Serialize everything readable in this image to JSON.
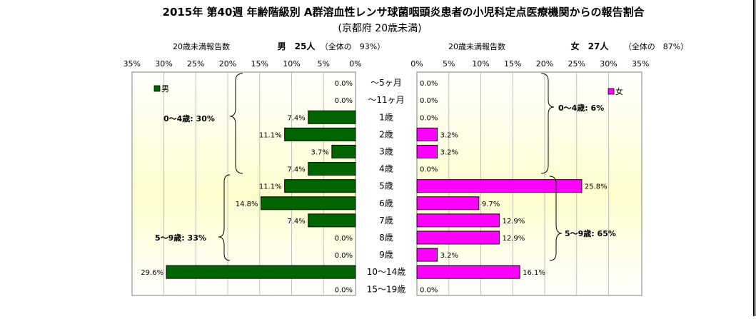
{
  "title": "2015年 第40週 年齢階級別 A群溶血性レンサ球菌咽頭炎患者の小児科定点医療機関からの報告割合",
  "subtitle": "(京都府 20歳未満)",
  "left_panel": {
    "report_label": "20歳未満報告数",
    "gender_title": "男　25人",
    "overall_note": "（全体の　93%）",
    "legend": "男",
    "group_labels": [
      "0～4歳: 30%",
      "5～9歳: 33%"
    ]
  },
  "right_panel": {
    "report_label": "20歳未満報告数",
    "gender_title": "女　27人",
    "overall_note": "（全体の　87%）",
    "legend": "女",
    "group_labels": [
      "0～4歳: 6%",
      "5～9歳: 65%"
    ]
  },
  "chart_data": {
    "type": "bar",
    "orientation": "horizontal",
    "categories": [
      "～5ヶ月",
      "～11ヶ月",
      "1歳",
      "2歳",
      "3歳",
      "4歳",
      "5歳",
      "6歳",
      "7歳",
      "8歳",
      "9歳",
      "10～14歳",
      "15～19歳"
    ],
    "series": [
      {
        "name": "男",
        "values": [
          0.0,
          0.0,
          7.4,
          11.1,
          3.7,
          7.4,
          11.1,
          14.8,
          7.4,
          0.0,
          0.0,
          29.6,
          0.0
        ],
        "labels": [
          "0.0%",
          "0.0%",
          "7.4%",
          "11.1%",
          "3.7%",
          "7.4%",
          "11.1%",
          "14.8%",
          "7.4%",
          "0.0%",
          "0.0%",
          "29.6%",
          "0.0%"
        ],
        "color": "#006400"
      },
      {
        "name": "女",
        "values": [
          0.0,
          0.0,
          0.0,
          3.2,
          3.2,
          0.0,
          25.8,
          9.7,
          12.9,
          12.9,
          3.2,
          16.1,
          0.0
        ],
        "labels": [
          "0.0%",
          "0.0%",
          "0.0%",
          "3.2%",
          "3.2%",
          "0.0%",
          "25.8%",
          "9.7%",
          "12.9%",
          "12.9%",
          "3.2%",
          "16.1%",
          "0.0%"
        ],
        "color": "#ff00ff"
      }
    ],
    "xlim": [
      0,
      35
    ],
    "ticks": [
      "0%",
      "5%",
      "10%",
      "15%",
      "20%",
      "25%",
      "30%",
      "35%"
    ],
    "tick_values": [
      0,
      5,
      10,
      15,
      20,
      25,
      30,
      35
    ],
    "grid": true,
    "background": "light yellow gradient"
  }
}
